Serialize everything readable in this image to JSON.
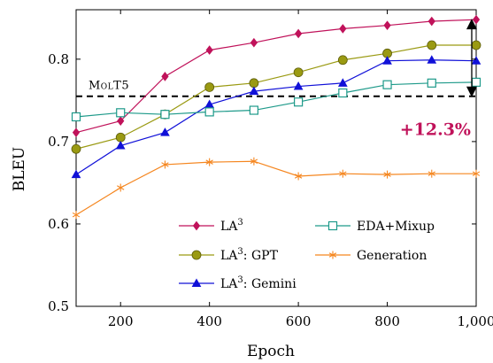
{
  "chart_data": {
    "type": "line",
    "title": "",
    "xlabel": "Epoch",
    "ylabel": "BLEU",
    "xlim": [
      100,
      1000
    ],
    "ylim": [
      0.5,
      0.86
    ],
    "xticks": [
      200,
      400,
      600,
      800,
      1000
    ],
    "xtick_labels": [
      "200",
      "400",
      "600",
      "800",
      "1,000"
    ],
    "yticks": [
      0.5,
      0.6,
      0.7,
      0.8
    ],
    "ytick_labels": [
      "0.5",
      "0.6",
      "0.7",
      "0.8"
    ],
    "grid": false,
    "legend_placement": "bottom-right",
    "x": [
      100,
      200,
      300,
      400,
      500,
      600,
      700,
      800,
      900,
      1000
    ],
    "series": [
      {
        "name_main": "LA",
        "name_sup": "3",
        "name_suffix": "",
        "color": "#C0125A",
        "marker": "diamond",
        "values": [
          0.711,
          0.725,
          0.779,
          0.811,
          0.82,
          0.831,
          0.837,
          0.841,
          0.846,
          0.848
        ]
      },
      {
        "name_main": "LA",
        "name_sup": "3",
        "name_suffix": ": GPT",
        "color": "#9A9A12",
        "marker": "circle",
        "values": [
          0.691,
          0.705,
          0.733,
          0.766,
          0.771,
          0.784,
          0.799,
          0.807,
          0.817,
          0.817
        ]
      },
      {
        "name_main": "LA",
        "name_sup": "3",
        "name_suffix": ": Gemini",
        "color": "#1010D8",
        "marker": "triangle",
        "values": [
          0.66,
          0.695,
          0.711,
          0.745,
          0.761,
          0.767,
          0.771,
          0.798,
          0.799,
          0.798
        ]
      },
      {
        "name_main": "EDA+Mixup",
        "name_sup": "",
        "name_suffix": "",
        "color": "#1E9A8A",
        "marker": "square",
        "values": [
          0.73,
          0.735,
          0.733,
          0.736,
          0.738,
          0.748,
          0.759,
          0.769,
          0.771,
          0.772
        ]
      },
      {
        "name_main": "Generation",
        "name_sup": "",
        "name_suffix": "",
        "color": "#F5861F",
        "marker": "star",
        "values": [
          0.611,
          0.644,
          0.672,
          0.675,
          0.676,
          0.658,
          0.661,
          0.66,
          0.661,
          0.661
        ]
      }
    ],
    "reference_line": {
      "label": "MolT5",
      "value": 0.755,
      "style": "dashed",
      "color": "#000000"
    },
    "annotation": {
      "text": "+12.3%",
      "color": "#C0125A",
      "x": 990,
      "from": 0.755,
      "to": 0.848
    }
  }
}
